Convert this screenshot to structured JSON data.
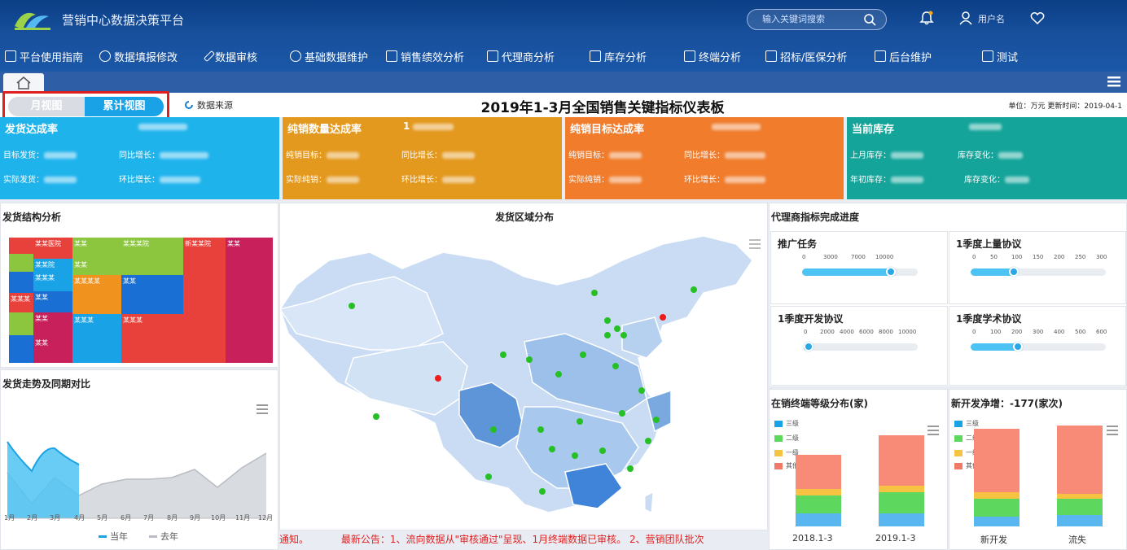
{
  "app": {
    "title": "营销中心数据决策平台",
    "search_placeholder": "输入关键词搜索",
    "user_name": "用户名"
  },
  "nav": [
    {
      "label": "平台使用指南"
    },
    {
      "label": "数据填报修改"
    },
    {
      "label": "数据审核"
    },
    {
      "label": "基础数据维护"
    },
    {
      "label": "销售绩效分析"
    },
    {
      "label": "代理商分析"
    },
    {
      "label": "库存分析"
    },
    {
      "label": "终端分析"
    },
    {
      "label": "招标/医保分析"
    },
    {
      "label": "后台维护"
    },
    {
      "label": "测试"
    }
  ],
  "view_toggle": {
    "monthly": "月视图",
    "cumulative": "累计视图"
  },
  "data_source": "数据来源",
  "board": {
    "title": "2019年1-3月全国销售关键指标仪表板",
    "units": "单位：万元   更新时间：2019-04-1"
  },
  "kpis": [
    {
      "title": "发货达成率",
      "color": "#1fb3ec",
      "rows": [
        {
          "label": "目标发货："
        },
        {
          "label": "同比增长："
        },
        {
          "label": "实际发货："
        },
        {
          "label": "环比增长："
        }
      ]
    },
    {
      "title": "纯销数量达成率",
      "value": "1",
      "color": "#e3981e",
      "rows": [
        {
          "label": "纯销目标："
        },
        {
          "label": "同比增长："
        },
        {
          "label": "实际纯销："
        },
        {
          "label": "环比增长："
        }
      ]
    },
    {
      "title": "纯销目标达成率",
      "color": "#f07c2c",
      "rows": [
        {
          "label": "纯销目标："
        },
        {
          "label": "同比增长："
        },
        {
          "label": "实际纯销："
        },
        {
          "label": "环比增长："
        }
      ]
    },
    {
      "title": "当前库存",
      "color": "#14a49a",
      "rows": [
        {
          "label": "上月库存："
        },
        {
          "label": "库存变化："
        },
        {
          "label": "年初库存："
        },
        {
          "label": "库存变化："
        }
      ]
    }
  ],
  "panels": {
    "shipment_structure": "发货结构分析",
    "shipment_region": "发货区域分布",
    "agent_progress": "代理商指标完成进度",
    "shipment_trend": "发货走势及同期对比",
    "terminal_distribution": "在销终端等级分布(家)",
    "new_terminals": "新开发净增：-177(家次)"
  },
  "treemap_labels": [
    "某某医院",
    "某某",
    "某某某院",
    "新某某院",
    "某某",
    "某某院",
    "某某",
    "某某某",
    "某某某某",
    "某某",
    "某某某",
    "某某",
    "某某",
    "某某某",
    "某某某",
    "某某",
    "某某某"
  ],
  "gauges": [
    {
      "title": "推广任务",
      "ticks": [
        "0",
        "3000",
        "7000",
        "10000"
      ],
      "pct": 0.77
    },
    {
      "title": "1季度上量协议",
      "ticks": [
        "0",
        "50",
        "100",
        "150",
        "200",
        "250",
        "300"
      ],
      "pct": 0.32
    },
    {
      "title": "1季度开发协议",
      "ticks": [
        "0",
        "2000",
        "4000",
        "6000",
        "8000",
        "10000"
      ],
      "pct": 0.04
    },
    {
      "title": "1季度学术协议",
      "ticks": [
        "0",
        "100",
        "200",
        "300",
        "400",
        "500",
        "600"
      ],
      "pct": 0.35
    }
  ],
  "trend": {
    "x_labels": [
      "1月",
      "2月",
      "3月",
      "4月",
      "5月",
      "6月",
      "7月",
      "8月",
      "9月",
      "10月",
      "11月",
      "12月"
    ],
    "legend_current": "当年",
    "legend_last": "去年"
  },
  "terminal_legend": [
    "三级",
    "二级",
    "一级",
    "其他"
  ],
  "terminal_bars": [
    "2018.1-3",
    "2019.1-3"
  ],
  "new_bars": [
    "新开发",
    "流失"
  ],
  "ticker": "最新公告：1、流向数据从\"审核通过\"呈现、1月终端数据已审核。  2、营销团队批次",
  "ticker_prefix": "通知。",
  "map_points": {
    "green": 26,
    "red": 2
  }
}
